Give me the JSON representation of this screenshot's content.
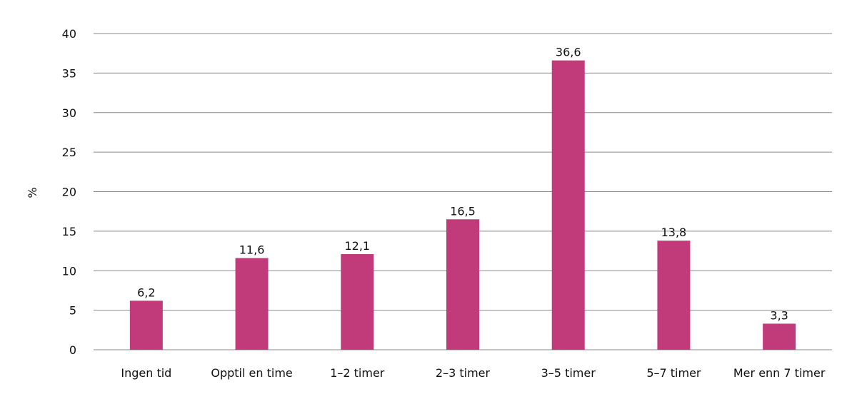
{
  "chart_data": {
    "type": "bar",
    "title": "",
    "xlabel": "",
    "ylabel": "%",
    "ylim": [
      0,
      40
    ],
    "yticks": [
      0,
      5,
      10,
      15,
      20,
      25,
      30,
      35,
      40
    ],
    "grid": true,
    "categories": [
      "Ingen tid",
      "Opptil en time",
      "1–2 timer",
      "2–3 timer",
      "3–5 timer",
      "5–7 timer",
      "Mer enn 7 timer"
    ],
    "values": [
      6.2,
      11.6,
      12.1,
      16.5,
      36.6,
      13.8,
      3.3
    ],
    "data_labels": [
      "6,2",
      "11,6",
      "12,1",
      "16,5",
      "36,6",
      "13,8",
      "3,3"
    ],
    "bar_color": "#c13b7b",
    "grid_color": "#8a8a8a"
  }
}
